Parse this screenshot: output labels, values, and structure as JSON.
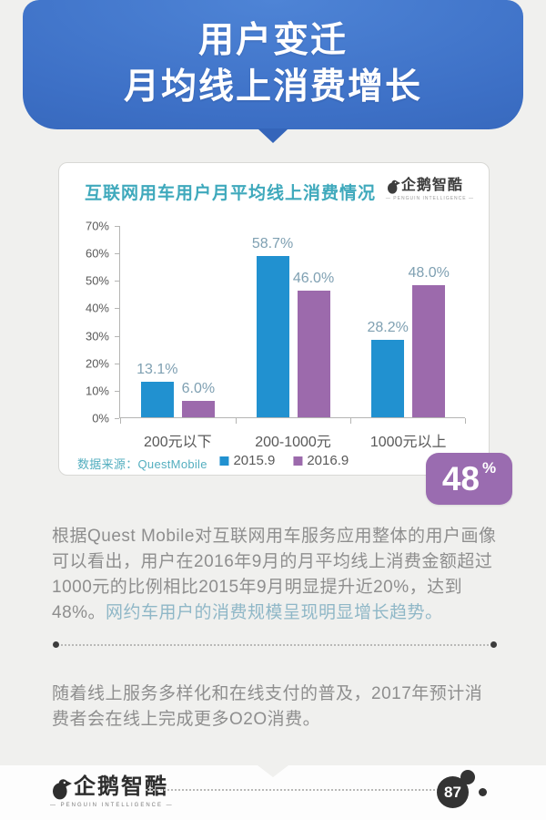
{
  "header": {
    "title_line1": "用户变迁",
    "title_line2": "月均线上消费增长",
    "bg_color": "#3d70c6"
  },
  "chart_card": {
    "title": "互联网用车用户月平均线上消费情况",
    "title_color": "#3fa9bc",
    "brand": {
      "name": "企鹅智酷",
      "subtitle": "— PENGUIN INTELLIGENCE —"
    },
    "source_label": "数据来源：QuestMobile",
    "source_color": "#53aebf"
  },
  "chart_data": {
    "type": "bar",
    "title": "互联网用车用户月平均线上消费情况",
    "categories": [
      "200元以下",
      "200-1000元",
      "1000元以上"
    ],
    "series": [
      {
        "name": "2015.9",
        "color": "#2191d0",
        "values": [
          13.1,
          58.7,
          28.2
        ]
      },
      {
        "name": "2016.9",
        "color": "#9c6aac",
        "values": [
          6.0,
          46.0,
          48.0
        ]
      }
    ],
    "value_suffix": "%",
    "ylim": [
      0,
      70
    ],
    "ytick_step": 10,
    "grid": false,
    "legend_position": "bottom",
    "label_color": "#7fa0b2"
  },
  "badge": {
    "value": "48",
    "unit": "%",
    "color": "#9a6cb0"
  },
  "paragraph1": {
    "text_gray": "根据Quest Mobile对互联网用车服务应用整体的用户画像可以看出，用户在2016年9月的月平均线上消费金额超过1000元的比例相比2015年9月明显提升近20%，达到48%。",
    "text_teal": "网约车用户的消费规模呈现明显增长趋势。",
    "highlight_color": "#8fb7c7"
  },
  "paragraph2": "随着线上服务多样化和在线支付的普及，2017年预计消费者会在线上完成更多O2O消费。",
  "footer": {
    "brand": "企鹅智酷",
    "brand_subtitle": "— PENGUIN INTELLIGENCE —",
    "page_number": "87"
  }
}
